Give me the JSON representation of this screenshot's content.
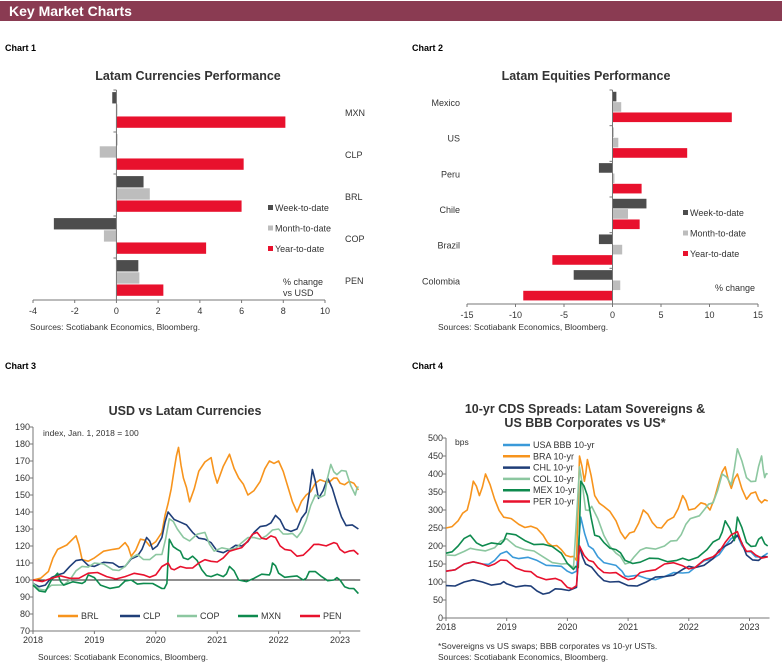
{
  "header": {
    "title": "Key Market Charts"
  },
  "colors": {
    "header_bg": "#8a3b52",
    "wtd": "#4d4d4d",
    "mtd": "#bdbdbd",
    "ytd": "#e8112d",
    "BRL": "#f7941d",
    "CLP": "#1f3e78",
    "COP": "#8cc7a0",
    "MXN": "#0e8a4e",
    "PEN": "#e8112d",
    "USA": "#3a9ad9"
  },
  "chart_data": [
    {
      "label": "Chart 1",
      "type": "bar",
      "orientation": "horizontal",
      "title": "Latam Currencies Performance",
      "categories": [
        "MXN",
        "CLP",
        "BRL",
        "COP",
        "PEN"
      ],
      "series": [
        {
          "name": "Week-to-date",
          "values": [
            -0.2,
            0.02,
            1.3,
            -3.0,
            1.05
          ]
        },
        {
          "name": "Month-to-date",
          "values": [
            0.05,
            -0.8,
            1.6,
            -0.6,
            1.1
          ]
        },
        {
          "name": "Year-to-date",
          "values": [
            8.1,
            6.1,
            6.0,
            4.3,
            2.25
          ]
        }
      ],
      "xlim": [
        -4,
        10
      ],
      "xticks": [
        "-4",
        "-2",
        "0",
        "2",
        "4",
        "6",
        "8",
        "10"
      ],
      "note": "% change vs USD",
      "legend": "right",
      "source": "Sources: Scotiabank Economics, Bloomberg."
    },
    {
      "label": "Chart 2",
      "type": "bar",
      "orientation": "horizontal",
      "title": "Latam Equities Performance",
      "categories": [
        "Mexico",
        "US",
        "Peru",
        "Chile",
        "Brazil",
        "Colombia"
      ],
      "series": [
        {
          "name": "Week-to-date",
          "values": [
            0.4,
            0,
            -1.4,
            3.5,
            -1.4,
            -4.0
          ]
        },
        {
          "name": "Month-to-date",
          "values": [
            0.9,
            0.6,
            0.2,
            1.6,
            1.0,
            0.8
          ]
        },
        {
          "name": "Year-to-date",
          "values": [
            12.3,
            7.7,
            3.0,
            2.8,
            -6.2,
            -9.2
          ]
        }
      ],
      "xlim": [
        -15,
        15
      ],
      "xticks": [
        "-15",
        "-10",
        "-5",
        "0",
        "5",
        "10",
        "15"
      ],
      "note": "% change",
      "legend": "right",
      "source": "Sources: Scotiabank Economics, Bloomberg."
    },
    {
      "label": "Chart 3",
      "type": "line",
      "title": "USD vs Latam Currencies",
      "ylabel": "index, Jan. 1, 2018 = 100",
      "ylim": [
        70,
        190
      ],
      "yticks": [
        "70",
        "80",
        "90",
        "100",
        "110",
        "120",
        "130",
        "140",
        "150",
        "160",
        "170",
        "180",
        "190"
      ],
      "xlim": [
        2018,
        2023.33
      ],
      "xticks": [
        "2018",
        "2019",
        "2020",
        "2021",
        "2022",
        "2023"
      ],
      "reference_line": 100,
      "legend": "bottom",
      "series": [
        {
          "name": "BRL",
          "x": [
            2018.0,
            2018.25,
            2018.4,
            2018.7,
            2018.8,
            2019.0,
            2019.3,
            2019.5,
            2019.6,
            2019.75,
            2019.9,
            2020.1,
            2020.2,
            2020.3,
            2020.37,
            2020.45,
            2020.55,
            2020.7,
            2020.9,
            2021.0,
            2021.2,
            2021.35,
            2021.5,
            2021.7,
            2021.85,
            2022.0,
            2022.15,
            2022.3,
            2022.45,
            2022.6,
            2022.75,
            2022.9,
            2023.0,
            2023.15,
            2023.3
          ],
          "y": [
            100,
            105,
            118,
            126,
            112,
            113,
            118,
            122,
            114,
            124,
            120,
            128,
            145,
            165,
            178,
            160,
            146,
            164,
            172,
            157,
            174,
            160,
            150,
            158,
            170,
            170,
            155,
            140,
            150,
            157,
            158,
            160,
            157,
            158,
            153
          ]
        },
        {
          "name": "CLP",
          "x": [
            2018.0,
            2018.2,
            2018.4,
            2018.6,
            2018.8,
            2019.0,
            2019.3,
            2019.5,
            2019.7,
            2019.85,
            2019.95,
            2020.1,
            2020.2,
            2020.4,
            2020.6,
            2020.8,
            2021.0,
            2021.2,
            2021.4,
            2021.6,
            2021.8,
            2021.95,
            2022.1,
            2022.3,
            2022.45,
            2022.55,
            2022.65,
            2022.8,
            2022.95,
            2023.1,
            2023.3
          ],
          "y": [
            98,
            97,
            103,
            108,
            112,
            108,
            110,
            108,
            114,
            125,
            118,
            125,
            140,
            134,
            128,
            124,
            117,
            118,
            120,
            128,
            132,
            138,
            130,
            130,
            140,
            165,
            148,
            160,
            145,
            132,
            130
          ]
        },
        {
          "name": "COP",
          "x": [
            2018.0,
            2018.2,
            2018.4,
            2018.6,
            2018.8,
            2019.0,
            2019.3,
            2019.5,
            2019.7,
            2019.9,
            2020.1,
            2020.22,
            2020.35,
            2020.55,
            2020.8,
            2020.95,
            2021.2,
            2021.4,
            2021.6,
            2021.8,
            2022.0,
            2022.15,
            2022.3,
            2022.45,
            2022.6,
            2022.75,
            2022.85,
            2022.95,
            2023.1,
            2023.25,
            2023.3
          ],
          "y": [
            98,
            94,
            97,
            100,
            108,
            110,
            106,
            108,
            115,
            112,
            115,
            136,
            130,
            123,
            128,
            117,
            118,
            122,
            125,
            126,
            130,
            127,
            125,
            135,
            150,
            150,
            168,
            162,
            164,
            150,
            155
          ]
        },
        {
          "name": "MXN",
          "x": [
            2018.0,
            2018.2,
            2018.4,
            2018.5,
            2018.8,
            2018.9,
            2019.1,
            2019.4,
            2019.6,
            2019.8,
            2020.1,
            2020.18,
            2020.22,
            2020.35,
            2020.45,
            2020.6,
            2020.75,
            2020.9,
            2021.1,
            2021.2,
            2021.35,
            2021.6,
            2021.85,
            2021.9,
            2022.0,
            2022.2,
            2022.4,
            2022.5,
            2022.7,
            2022.9,
            2023.0,
            2023.15,
            2023.3
          ],
          "y": [
            97,
            93,
            104,
            97,
            98,
            103,
            97,
            96,
            100,
            98,
            95,
            98,
            124,
            118,
            113,
            114,
            106,
            102,
            102,
            108,
            100,
            101,
            103,
            110,
            104,
            102,
            100,
            105,
            102,
            100,
            100,
            95,
            92
          ]
        },
        {
          "name": "PEN",
          "x": [
            2018.0,
            2018.3,
            2018.6,
            2018.9,
            2019.2,
            2019.5,
            2019.8,
            2020.0,
            2020.2,
            2020.3,
            2020.5,
            2020.7,
            2020.9,
            2021.1,
            2021.3,
            2021.5,
            2021.65,
            2021.8,
            2021.95,
            2022.1,
            2022.3,
            2022.5,
            2022.65,
            2022.9,
            2023.0,
            2023.15,
            2023.3
          ],
          "y": [
            100,
            101,
            101,
            104,
            102,
            102,
            103,
            103,
            110,
            106,
            107,
            110,
            111,
            113,
            118,
            123,
            128,
            124,
            125,
            118,
            114,
            118,
            121,
            122,
            118,
            117,
            115
          ]
        }
      ],
      "source": "Sources: Scotiabank Economics, Bloomberg."
    },
    {
      "label": "Chart 4",
      "type": "line",
      "title": "10-yr CDS Spreads: Latam Sovereigns &",
      "title_line2": "US BBB Corporates vs US*",
      "ylabel": "bps",
      "ylim": [
        0,
        500
      ],
      "yticks": [
        "0",
        "50",
        "100",
        "150",
        "200",
        "250",
        "300",
        "350",
        "400",
        "450",
        "500"
      ],
      "xlim": [
        2018,
        2023.33
      ],
      "xticks": [
        "2018",
        "2019",
        "2020",
        "2021",
        "2022",
        "2023"
      ],
      "legend": "top-left",
      "series": [
        {
          "name": "USA BBB 10-yr",
          "color_key": "USA",
          "x": [
            2018.0,
            2018.3,
            2018.6,
            2018.8,
            2019.0,
            2019.2,
            2019.5,
            2019.8,
            2020.0,
            2020.15,
            2020.22,
            2020.35,
            2020.5,
            2020.7,
            2020.9,
            2021.0,
            2021.3,
            2021.6,
            2021.9,
            2022.1,
            2022.4,
            2022.6,
            2022.8,
            2022.95,
            2023.1,
            2023.3
          ],
          "y": [
            130,
            150,
            150,
            160,
            185,
            165,
            160,
            145,
            130,
            130,
            280,
            200,
            170,
            150,
            130,
            115,
            110,
            115,
            125,
            140,
            165,
            200,
            230,
            185,
            170,
            180
          ]
        },
        {
          "name": "BRA 10-yr",
          "color_key": "BRL",
          "x": [
            2018.0,
            2018.2,
            2018.35,
            2018.45,
            2018.55,
            2018.65,
            2018.8,
            2018.95,
            2019.2,
            2019.4,
            2019.6,
            2019.75,
            2019.9,
            2020.05,
            2020.15,
            2020.2,
            2020.28,
            2020.33,
            2020.45,
            2020.6,
            2020.8,
            2020.95,
            2021.1,
            2021.25,
            2021.4,
            2021.55,
            2021.75,
            2021.9,
            2022.0,
            2022.2,
            2022.35,
            2022.5,
            2022.6,
            2022.7,
            2022.8,
            2022.95,
            2023.1,
            2023.2,
            2023.3
          ],
          "y": [
            250,
            270,
            300,
            380,
            340,
            400,
            330,
            280,
            260,
            255,
            230,
            200,
            190,
            170,
            160,
            450,
            380,
            440,
            340,
            310,
            270,
            220,
            240,
            300,
            265,
            250,
            280,
            340,
            300,
            320,
            300,
            380,
            420,
            360,
            400,
            330,
            350,
            320,
            325
          ]
        },
        {
          "name": "CHL 10-yr",
          "color_key": "CLP",
          "x": [
            2018.0,
            2018.3,
            2018.6,
            2018.9,
            2019.0,
            2019.3,
            2019.5,
            2019.7,
            2019.9,
            2020.15,
            2020.2,
            2020.3,
            2020.5,
            2020.7,
            2021.0,
            2021.3,
            2021.6,
            2021.9,
            2022.1,
            2022.4,
            2022.6,
            2022.8,
            2022.95,
            2023.15,
            2023.3
          ],
          "y": [
            90,
            100,
            100,
            95,
            95,
            90,
            75,
            70,
            80,
            85,
            200,
            150,
            120,
            100,
            90,
            100,
            115,
            135,
            140,
            165,
            200,
            230,
            175,
            160,
            170
          ]
        },
        {
          "name": "COL 10-yr",
          "color_key": "COP",
          "x": [
            2018.0,
            2018.3,
            2018.5,
            2018.8,
            2019.0,
            2019.3,
            2019.6,
            2019.9,
            2020.1,
            2020.2,
            2020.3,
            2020.4,
            2020.6,
            2020.8,
            2020.95,
            2021.1,
            2021.3,
            2021.6,
            2021.8,
            2021.95,
            2022.1,
            2022.25,
            2022.4,
            2022.55,
            2022.7,
            2022.8,
            2022.95,
            2023.1,
            2023.2,
            2023.25,
            2023.3
          ],
          "y": [
            175,
            185,
            190,
            195,
            220,
            190,
            170,
            150,
            140,
            420,
            300,
            310,
            230,
            180,
            150,
            170,
            195,
            200,
            215,
            260,
            280,
            300,
            320,
            400,
            370,
            470,
            390,
            380,
            450,
            390,
            400
          ]
        },
        {
          "name": "MEX 10-yr",
          "color_key": "MXN",
          "x": [
            2018.0,
            2018.2,
            2018.4,
            2018.6,
            2018.9,
            2019.0,
            2019.3,
            2019.6,
            2019.9,
            2020.1,
            2020.18,
            2020.22,
            2020.33,
            2020.45,
            2020.6,
            2020.8,
            2020.95,
            2021.2,
            2021.5,
            2021.8,
            2022.0,
            2022.3,
            2022.5,
            2022.6,
            2022.75,
            2022.8,
            2022.95,
            2023.1,
            2023.2,
            2023.3
          ],
          "y": [
            180,
            200,
            230,
            200,
            205,
            235,
            215,
            205,
            180,
            135,
            140,
            380,
            340,
            230,
            210,
            190,
            160,
            155,
            165,
            160,
            160,
            190,
            220,
            270,
            215,
            280,
            210,
            200,
            225,
            200
          ]
        },
        {
          "name": "PER 10-yr",
          "color_key": "PEN",
          "x": [
            2018.0,
            2018.3,
            2018.6,
            2018.8,
            2019.0,
            2019.3,
            2019.5,
            2019.8,
            2020.0,
            2020.15,
            2020.2,
            2020.35,
            2020.5,
            2020.7,
            2020.9,
            2021.1,
            2021.3,
            2021.6,
            2021.9,
            2022.1,
            2022.4,
            2022.6,
            2022.8,
            2022.95,
            2023.1,
            2023.3
          ],
          "y": [
            130,
            150,
            150,
            150,
            160,
            130,
            115,
            110,
            85,
            90,
            200,
            160,
            140,
            125,
            115,
            110,
            130,
            150,
            145,
            140,
            170,
            210,
            240,
            185,
            175,
            170
          ]
        }
      ],
      "footnote": "*Sovereigns vs US swaps; BBB corporates vs 10-yr USTs.",
      "source": "Sources: Scotiabank Economics, Bloomberg."
    }
  ]
}
